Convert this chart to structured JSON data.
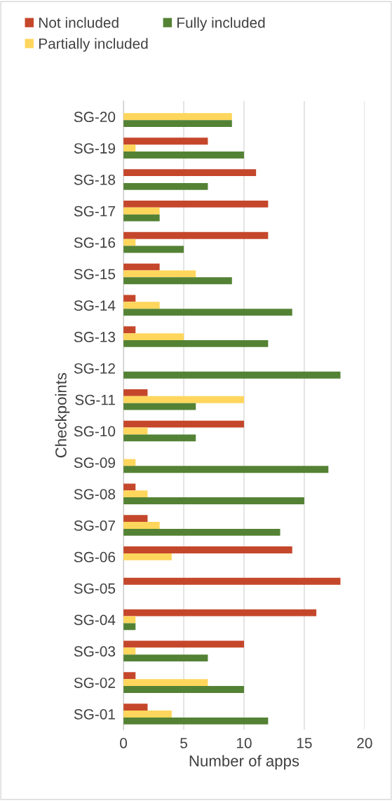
{
  "chart_data": {
    "type": "bar",
    "orientation": "horizontal",
    "xlabel": "Number of apps",
    "ylabel": "Checkpoints",
    "categories": [
      "SG-20",
      "SG-19",
      "SG-18",
      "SG-17",
      "SG-16",
      "SG-15",
      "SG-14",
      "SG-13",
      "SG-12",
      "SG-11",
      "SG-10",
      "SG-09",
      "SG-08",
      "SG-07",
      "SG-06",
      "SG-05",
      "SG-04",
      "SG-03",
      "SG-02",
      "SG-01"
    ],
    "series": [
      {
        "name": "Not included",
        "color": "#c5472b",
        "values": [
          0,
          7,
          11,
          12,
          12,
          3,
          1,
          1,
          0,
          2,
          10,
          0,
          1,
          2,
          14,
          18,
          16,
          10,
          1,
          2
        ]
      },
      {
        "name": "Partially included",
        "color": "#ffd65c",
        "values": [
          9,
          1,
          0,
          3,
          1,
          6,
          3,
          5,
          0,
          10,
          2,
          1,
          2,
          3,
          4,
          0,
          1,
          1,
          7,
          4
        ]
      },
      {
        "name": "Fully included",
        "color": "#548235",
        "values": [
          9,
          10,
          7,
          3,
          5,
          9,
          14,
          12,
          18,
          6,
          6,
          17,
          15,
          13,
          0,
          0,
          1,
          7,
          10,
          12
        ]
      }
    ],
    "xlim": [
      0,
      20
    ],
    "xticks": [
      0,
      5,
      10,
      15,
      20
    ],
    "grid": "x",
    "legend": "top"
  }
}
